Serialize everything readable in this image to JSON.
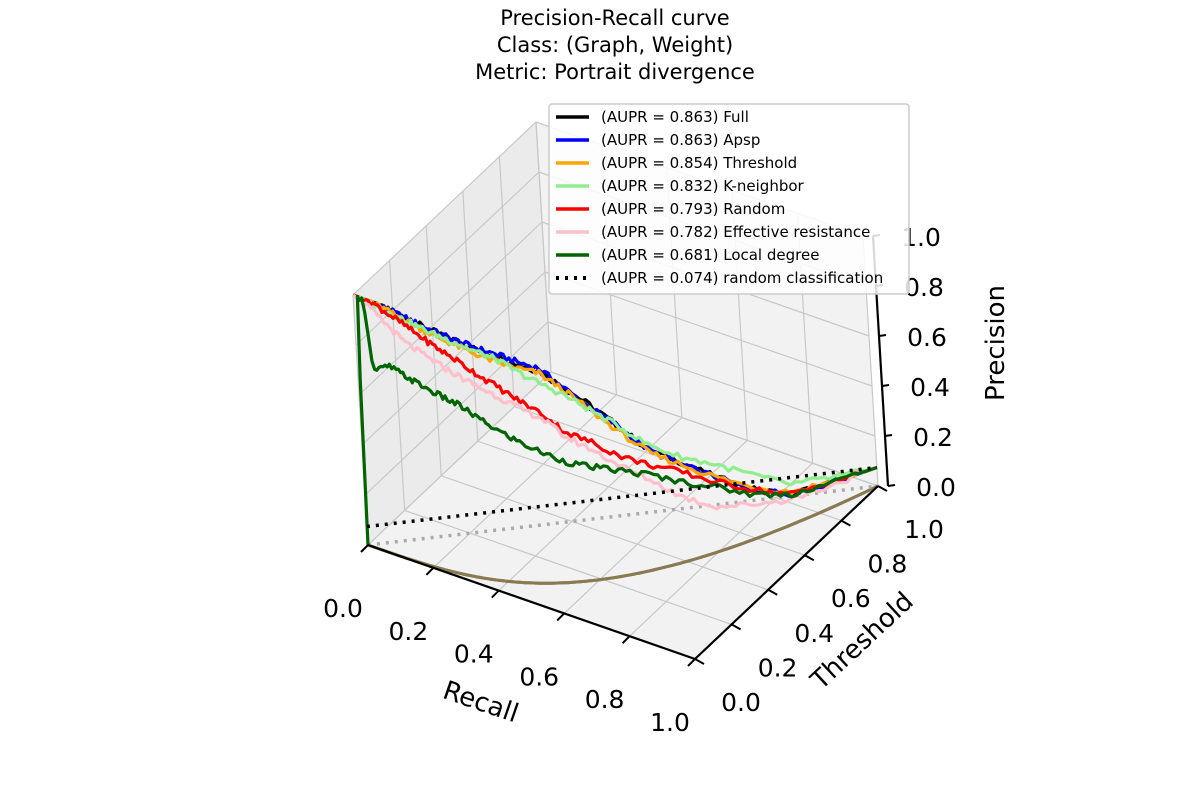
{
  "chart_data": {
    "type": "line",
    "title_lines": [
      "Precision-Recall curve",
      "Class: (Graph, Weight)",
      "Metric: Portrait divergence"
    ],
    "xlabel": "Recall",
    "ylabel": "Threshold",
    "zlabel": "Precision",
    "xlim": [
      0,
      1
    ],
    "ylim": [
      0,
      1
    ],
    "zlim": [
      0,
      1
    ],
    "x_ticks": [
      "0.0",
      "0.2",
      "0.4",
      "0.6",
      "0.8",
      "1.0"
    ],
    "y_ticks": [
      "0.0",
      "0.2",
      "0.4",
      "0.6",
      "0.8",
      "1.0"
    ],
    "z_ticks": [
      "0.0",
      "0.2",
      "0.4",
      "0.6",
      "0.8",
      "1.0"
    ],
    "grid": true,
    "legend_position": "upper-right",
    "series": [
      {
        "name": "(AUPR = 0.863) Full",
        "color": "#000000",
        "style": "solid",
        "recall": [
          0.0,
          0.05,
          0.15,
          0.3,
          0.4,
          0.5,
          0.55,
          0.6,
          0.65,
          0.7,
          0.75,
          0.8,
          0.85,
          0.9,
          1.0
        ],
        "precision": [
          1.0,
          1.0,
          0.98,
          0.94,
          0.9,
          0.85,
          0.78,
          0.7,
          0.6,
          0.48,
          0.4,
          0.3,
          0.2,
          0.12,
          0.074
        ]
      },
      {
        "name": "(AUPR = 0.863) Apsp",
        "color": "#0000ff",
        "style": "solid",
        "recall": [
          0.0,
          0.05,
          0.15,
          0.3,
          0.4,
          0.5,
          0.55,
          0.6,
          0.65,
          0.7,
          0.75,
          0.8,
          0.85,
          0.9,
          1.0
        ],
        "precision": [
          1.0,
          1.0,
          0.98,
          0.94,
          0.91,
          0.86,
          0.78,
          0.69,
          0.6,
          0.48,
          0.39,
          0.3,
          0.2,
          0.12,
          0.074
        ]
      },
      {
        "name": "(AUPR = 0.854) Threshold",
        "color": "#ffa500",
        "style": "solid",
        "recall": [
          0.0,
          0.05,
          0.15,
          0.3,
          0.4,
          0.5,
          0.55,
          0.6,
          0.65,
          0.7,
          0.75,
          0.8,
          0.85,
          0.9,
          1.0
        ],
        "precision": [
          1.0,
          1.0,
          0.97,
          0.92,
          0.88,
          0.84,
          0.77,
          0.68,
          0.58,
          0.47,
          0.39,
          0.3,
          0.21,
          0.13,
          0.074
        ]
      },
      {
        "name": "(AUPR = 0.832) K-neighbor",
        "color": "#90ee90",
        "style": "solid",
        "recall": [
          0.0,
          0.05,
          0.15,
          0.3,
          0.4,
          0.5,
          0.55,
          0.6,
          0.65,
          0.7,
          0.75,
          0.8,
          0.85,
          0.9,
          1.0
        ],
        "precision": [
          1.0,
          0.99,
          0.97,
          0.93,
          0.89,
          0.8,
          0.75,
          0.68,
          0.6,
          0.5,
          0.42,
          0.35,
          0.26,
          0.16,
          0.074
        ]
      },
      {
        "name": "(AUPR = 0.793) Random",
        "color": "#ff0000",
        "style": "solid",
        "recall": [
          0.0,
          0.05,
          0.15,
          0.3,
          0.4,
          0.5,
          0.55,
          0.6,
          0.65,
          0.7,
          0.75,
          0.8,
          0.85,
          0.9,
          1.0
        ],
        "precision": [
          1.0,
          1.0,
          0.95,
          0.86,
          0.78,
          0.68,
          0.6,
          0.55,
          0.48,
          0.42,
          0.36,
          0.28,
          0.2,
          0.12,
          0.074
        ]
      },
      {
        "name": "(AUPR = 0.782) Effective resistance",
        "color": "#ffc0cb",
        "style": "solid",
        "recall": [
          0.0,
          0.05,
          0.15,
          0.3,
          0.4,
          0.5,
          0.55,
          0.6,
          0.65,
          0.7,
          0.75,
          0.8,
          0.85,
          0.9,
          1.0
        ],
        "precision": [
          1.0,
          0.97,
          0.88,
          0.8,
          0.74,
          0.66,
          0.58,
          0.52,
          0.44,
          0.36,
          0.26,
          0.18,
          0.14,
          0.1,
          0.074
        ]
      },
      {
        "name": "(AUPR = 0.681) Local degree",
        "color": "#006400",
        "style": "solid",
        "recall": [
          0.0,
          0.01,
          0.03,
          0.05,
          0.1,
          0.2,
          0.3,
          0.4,
          0.5,
          0.55,
          0.6,
          0.65,
          0.7,
          0.75,
          0.8,
          0.85,
          0.9,
          1.0
        ],
        "precision": [
          0.0,
          1.0,
          1.0,
          0.72,
          0.76,
          0.72,
          0.68,
          0.6,
          0.52,
          0.48,
          0.45,
          0.42,
          0.38,
          0.32,
          0.26,
          0.18,
          0.12,
          0.074
        ]
      },
      {
        "name": "(AUPR = 0.074) random classification",
        "color": "#000000",
        "style": "dotted",
        "recall": [
          0.0,
          1.0
        ],
        "precision": [
          0.074,
          0.074
        ]
      }
    ]
  }
}
